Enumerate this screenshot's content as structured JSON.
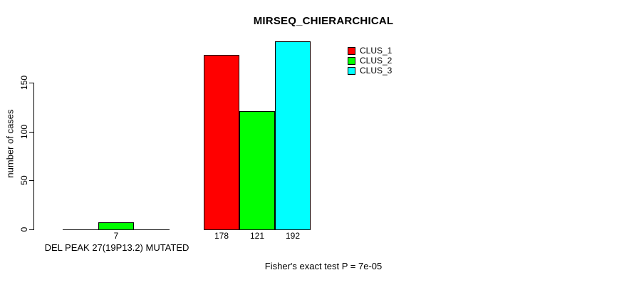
{
  "chart_data": {
    "type": "bar",
    "title": "MIRSEQ_CHIERARCHICAL",
    "xlabel": "",
    "ylabel": "number of cases",
    "ylim": [
      0,
      200
    ],
    "yticks": [
      0,
      50,
      100,
      150
    ],
    "grid": false,
    "legend_position": "top-right",
    "series": [
      {
        "name": "CLUS_1",
        "color": "#ff0000"
      },
      {
        "name": "CLUS_2",
        "color": "#00ff00"
      },
      {
        "name": "CLUS_3",
        "color": "#00ffff"
      }
    ],
    "groups": [
      {
        "label": "DEL PEAK 27(19P13.2) MUTATED",
        "values": [
          0,
          7,
          0
        ],
        "bar_labels": [
          "",
          "7",
          ""
        ]
      },
      {
        "label": "",
        "values": [
          178,
          121,
          192
        ],
        "bar_labels": [
          "178",
          "121",
          "192"
        ]
      }
    ],
    "footnote": "Fisher's exact test P = 7e-05"
  }
}
